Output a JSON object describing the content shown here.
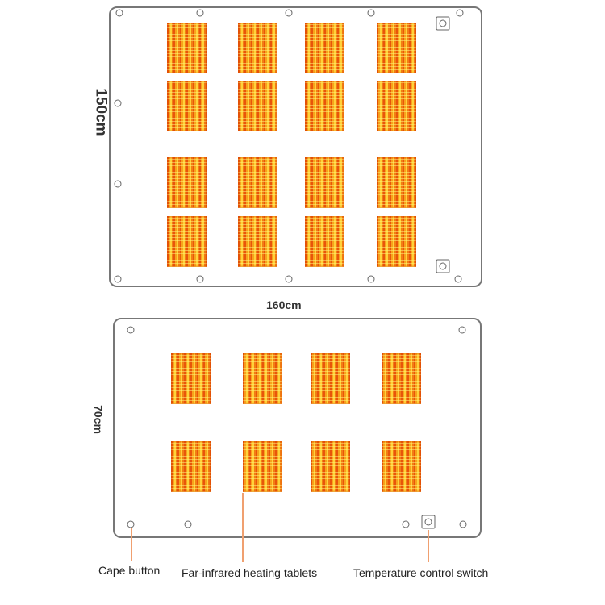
{
  "dimensions": {
    "large_height": "150cm",
    "large_width": "160cm",
    "small_height": "70cm"
  },
  "callouts": {
    "cape_button": "Cape button",
    "heating_tablets": "Far-infrared heating tablets",
    "temperature_switch": "Temperature control switch"
  },
  "colors": {
    "tablet": "#f27d14",
    "outline": "#777777",
    "leader_line": "#f0a070"
  }
}
